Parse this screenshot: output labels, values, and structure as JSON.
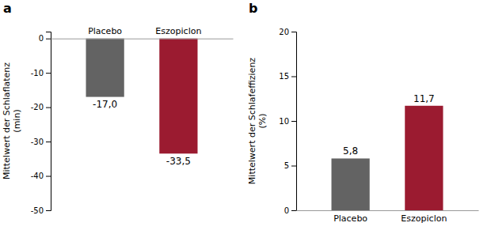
{
  "chart_data": [
    {
      "type": "bar",
      "title": "a",
      "categories": [
        "Placebo",
        "Eszopiclon"
      ],
      "values": [
        -17.0,
        -33.5
      ],
      "value_labels": [
        "-17,0",
        "-33,5"
      ],
      "data_labels": true,
      "colors": [
        "#636363",
        "#9b1b30"
      ],
      "ylim": [
        -50,
        2
      ],
      "yticks": [
        0,
        -10,
        -20,
        -30,
        -40,
        -50
      ],
      "ylabel": "Mittelwert der Schlaflatenz\n(min)"
    },
    {
      "type": "bar",
      "title": "b",
      "categories": [
        "Placebo",
        "Eszopiclon"
      ],
      "values": [
        5.8,
        11.7
      ],
      "value_labels": [
        "5,8",
        "11,7"
      ],
      "data_labels": true,
      "colors": [
        "#636363",
        "#9b1b30"
      ],
      "ylim": [
        0,
        20
      ],
      "yticks": [
        0,
        5,
        10,
        15,
        20
      ],
      "ylabel": "Mittelwert der Schlafeffizienz\n(%)"
    }
  ]
}
